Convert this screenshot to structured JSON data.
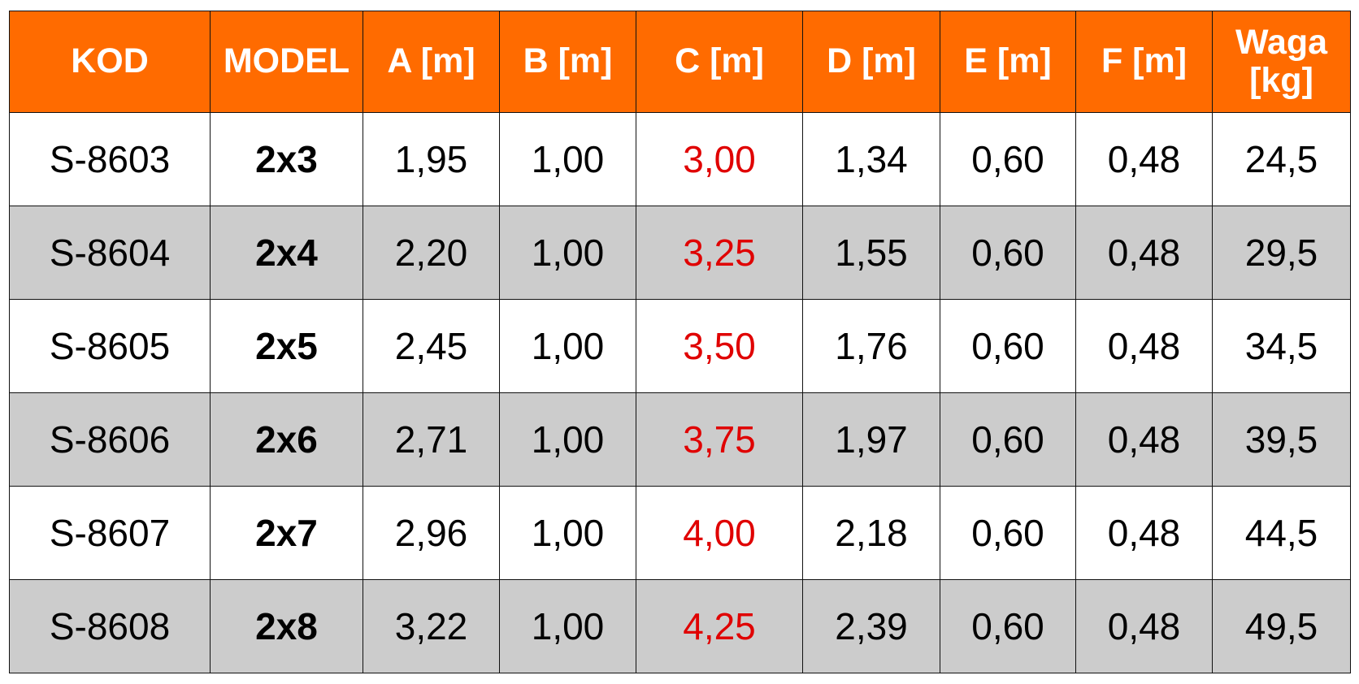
{
  "table": {
    "header": [
      "KOD",
      "MODEL",
      "A [m]",
      "B [m]",
      "C [m]",
      "D [m]",
      "E [m]",
      "F [m]",
      "Waga [kg]"
    ],
    "rows": [
      [
        "S-8603",
        "2x3",
        "1,95",
        "1,00",
        "3,00",
        "1,34",
        "0,60",
        "0,48",
        "24,5"
      ],
      [
        "S-8604",
        "2x4",
        "2,20",
        "1,00",
        "3,25",
        "1,55",
        "0,60",
        "0,48",
        "29,5"
      ],
      [
        "S-8605",
        "2x5",
        "2,45",
        "1,00",
        "3,50",
        "1,76",
        "0,60",
        "0,48",
        "34,5"
      ],
      [
        "S-8606",
        "2x6",
        "2,71",
        "1,00",
        "3,75",
        "1,97",
        "0,60",
        "0,48",
        "39,5"
      ],
      [
        "S-8607",
        "2x7",
        "2,96",
        "1,00",
        "4,00",
        "2,18",
        "0,60",
        "0,48",
        "44,5"
      ],
      [
        "S-8608",
        "2x8",
        "3,22",
        "1,00",
        "4,25",
        "2,39",
        "0,60",
        "0,48",
        "49,5"
      ]
    ]
  }
}
